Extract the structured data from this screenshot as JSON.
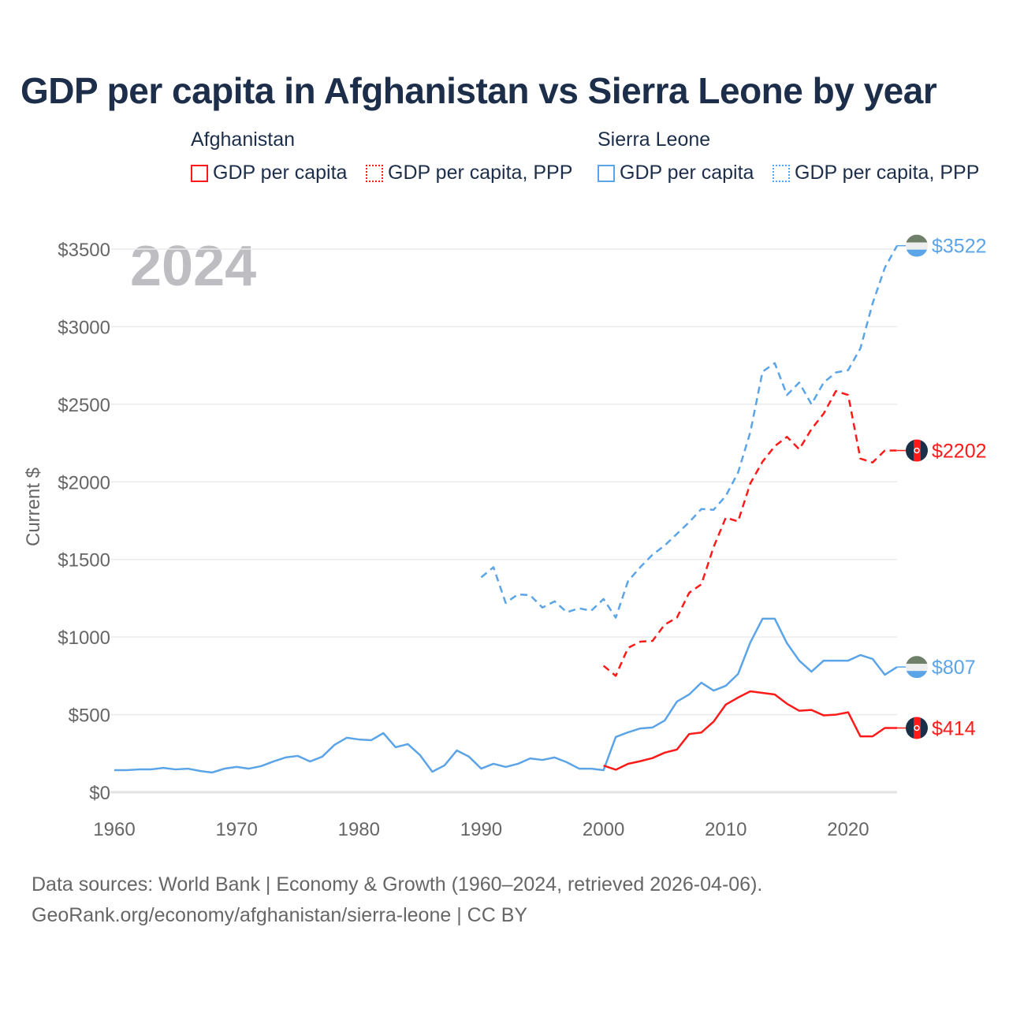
{
  "chart_data": {
    "type": "line",
    "title": "GDP per capita in Afghanistan vs Sierra Leone by year",
    "ylabel": "Current $",
    "xlabel": "",
    "xlim": [
      1960,
      2024
    ],
    "ylim": [
      0,
      3500
    ],
    "year_watermark": "2024",
    "x_ticks": [
      "1960",
      "1970",
      "1980",
      "1990",
      "2000",
      "2010",
      "2020"
    ],
    "y_ticks": [
      "$0",
      "$500",
      "$1000",
      "$1500",
      "$2000",
      "$2500",
      "$3000",
      "$3500"
    ],
    "legend": {
      "groups": [
        {
          "country": "Afghanistan",
          "items": [
            "GDP per capita",
            "GDP per capita, PPP"
          ]
        },
        {
          "country": "Sierra Leone",
          "items": [
            "GDP per capita",
            "GDP per capita, PPP"
          ]
        }
      ],
      "placement": "top"
    },
    "series": [
      {
        "name": "Sierra Leone GDP per capita",
        "country": "Sierra Leone",
        "color": "#5ba4e8",
        "dashed": false,
        "start": 1960,
        "end_label": "$807",
        "values": [
          142,
          142,
          147,
          147,
          157,
          147,
          152,
          137,
          127,
          152,
          163,
          152,
          168,
          198,
          224,
          234,
          198,
          229,
          305,
          351,
          340,
          335,
          381,
          290,
          310,
          239,
          132,
          173,
          269,
          229,
          152,
          183,
          163,
          183,
          218,
          208,
          224,
          193,
          152,
          152,
          142,
          356,
          386,
          411,
          417,
          462,
          584,
          630,
          706,
          655,
          686,
          762,
          965,
          1118,
          1118,
          960,
          848,
          777,
          848,
          848,
          848,
          884,
          859,
          757,
          807
        ]
      },
      {
        "name": "Afghanistan GDP per capita",
        "country": "Afghanistan",
        "color": "#ff1a1a",
        "dashed": false,
        "start": 2000,
        "end_label": "$414",
        "values": [
          172,
          145,
          183,
          200,
          220,
          255,
          275,
          375,
          385,
          455,
          565,
          610,
          650,
          640,
          630,
          570,
          525,
          530,
          495,
          500,
          515,
          360,
          360,
          414,
          414
        ]
      },
      {
        "name": "Afghanistan GDP per capita, PPP",
        "country": "Afghanistan",
        "color": "#ff1a1a",
        "dashed": true,
        "start": 2000,
        "end_label": "$2202",
        "values": [
          815,
          750,
          930,
          970,
          975,
          1080,
          1125,
          1285,
          1340,
          1580,
          1770,
          1745,
          1990,
          2130,
          2230,
          2290,
          2210,
          2340,
          2440,
          2585,
          2560,
          2150,
          2125,
          2202,
          2202
        ]
      },
      {
        "name": "Sierra Leone GDP per capita, PPP",
        "country": "Sierra Leone",
        "color": "#5ba4e8",
        "dashed": true,
        "start": 1990,
        "end_label": "$3522",
        "values": [
          1385,
          1450,
          1220,
          1275,
          1270,
          1190,
          1230,
          1160,
          1185,
          1170,
          1245,
          1125,
          1360,
          1450,
          1530,
          1590,
          1665,
          1740,
          1825,
          1820,
          1910,
          2060,
          2320,
          2710,
          2765,
          2560,
          2640,
          2500,
          2640,
          2705,
          2720,
          2860,
          3150,
          3380,
          3522
        ]
      }
    ]
  },
  "footer": {
    "line1": "Data sources: World Bank | Economy & Growth (1960–2024, retrieved 2026-04-06).",
    "line2": "GeoRank.org/economy/afghanistan/sierra-leone | CC BY"
  }
}
